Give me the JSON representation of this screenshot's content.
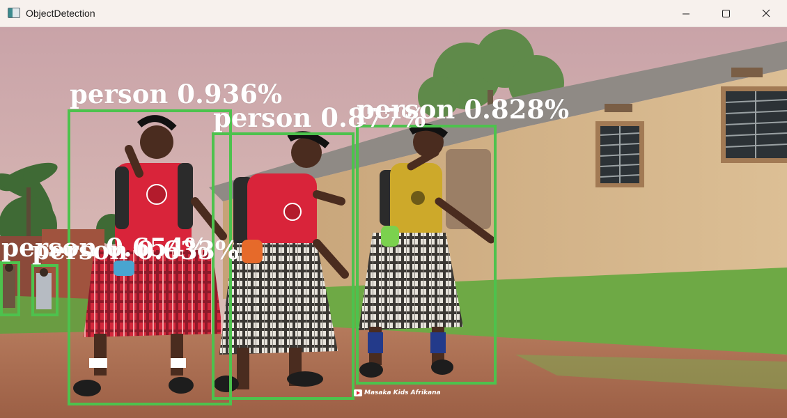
{
  "window": {
    "title": "ObjectDetection",
    "app_icon": "window-app-icon",
    "controls": {
      "minimize_icon": "minimize-icon",
      "maximize_icon": "maximize-icon",
      "close_icon": "close-icon"
    }
  },
  "detections": [
    {
      "label": "person 0.936%",
      "color": "#4dc24d"
    },
    {
      "label": "person 0.877%",
      "color": "#4dc24d"
    },
    {
      "label": "person 0.828%",
      "color": "#4dc24d"
    },
    {
      "label": "person 0.654%",
      "color": "#4dc24d"
    },
    {
      "label": "person 0.633%",
      "color": "#4dc24d"
    }
  ],
  "watermark": {
    "text": "Masaka Kids Afrikana",
    "icon": "play-icon"
  }
}
